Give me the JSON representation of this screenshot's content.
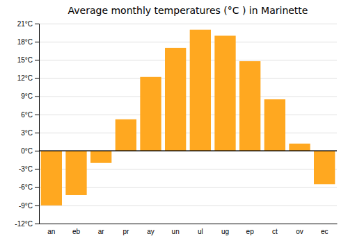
{
  "chart_data": {
    "type": "bar",
    "title": "Average monthly temperatures (°C ) in Marinette",
    "categories": [
      "an",
      "eb",
      "ar",
      "pr",
      "ay",
      "un",
      "ul",
      "ug",
      "ep",
      "ct",
      "ov",
      "ec"
    ],
    "values": [
      -9.0,
      -7.3,
      -2.0,
      5.2,
      12.2,
      17.0,
      20.0,
      19.0,
      14.8,
      8.5,
      1.2,
      -5.5
    ],
    "color": "#FFA820",
    "ylim": [
      -12,
      21
    ],
    "yticks": [
      {
        "value": -12,
        "label": "-12°C"
      },
      {
        "value": -9,
        "label": "-9°C"
      },
      {
        "value": -6,
        "label": "-6°C"
      },
      {
        "value": -3,
        "label": "-3°C"
      },
      {
        "value": 0,
        "label": "0°C"
      },
      {
        "value": 3,
        "label": "3°C"
      },
      {
        "value": 6,
        "label": "6°C"
      },
      {
        "value": 9,
        "label": "9°C"
      },
      {
        "value": 12,
        "label": "12°C"
      },
      {
        "value": 15,
        "label": "15°C"
      },
      {
        "value": 18,
        "label": "18°C"
      },
      {
        "value": 21,
        "label": "21°C"
      }
    ],
    "grid": true
  }
}
